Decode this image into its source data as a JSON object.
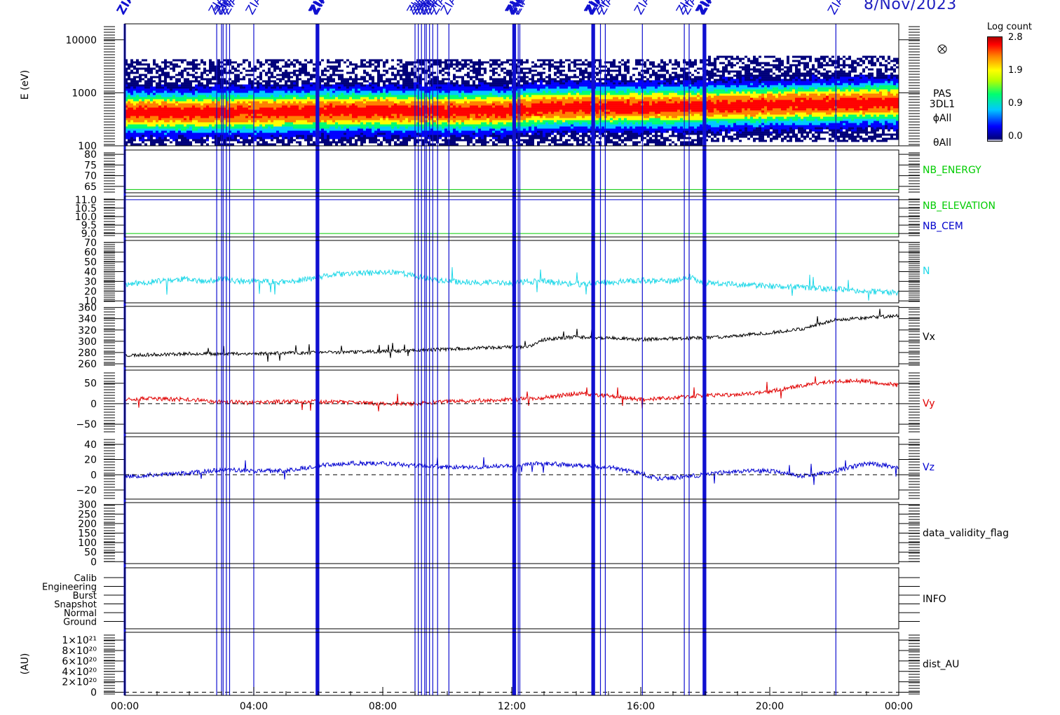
{
  "date_label": "8/Nov/2023",
  "marker_label": "ZIAS",
  "colorbar": {
    "title": "Log count",
    "ticks": [
      "2.8",
      "1.9",
      "0.9",
      "0.0"
    ],
    "colors": [
      "#ffffff",
      "#00007a",
      "#0000ff",
      "#00c8ff",
      "#00ff70",
      "#ffff00",
      "#ff8000",
      "#ff0000",
      "#b00000"
    ]
  },
  "chart_data": {
    "type": "line",
    "x_range_hours": [
      0,
      24
    ],
    "x_tick_labels": [
      "00:00",
      "04:00",
      "08:00",
      "12:00",
      "16:00",
      "20:00",
      "00:00"
    ],
    "event_markers_hours": [
      0.0,
      2.85,
      3.0,
      3.05,
      3.15,
      3.25,
      4.0,
      5.95,
      6.0,
      9.0,
      9.1,
      9.2,
      9.3,
      9.35,
      9.45,
      9.55,
      9.7,
      10.05,
      12.05,
      12.1,
      12.2,
      12.25,
      14.5,
      14.55,
      14.75,
      14.9,
      16.05,
      17.35,
      17.5,
      17.95,
      18.0,
      22.05
    ],
    "panels": [
      {
        "id": "spectrogram",
        "type": "heatmap",
        "ylabel": "E (eV)",
        "y_scale": "log",
        "ylim": [
          100,
          20000
        ],
        "y_tick_labels": [
          "10000",
          "1000",
          "100"
        ],
        "y_ticks": [
          10000,
          1000,
          100
        ],
        "right_labels": [
          "PAS",
          "3DL1",
          "ϕAll",
          "θAll"
        ],
        "peak_energy_ev": {
          "hours": [
            0,
            2,
            4,
            6,
            8,
            10,
            12,
            12.5,
            13,
            14,
            16,
            18,
            20,
            22,
            24
          ],
          "values": [
            450,
            440,
            450,
            470,
            480,
            470,
            480,
            520,
            540,
            560,
            560,
            580,
            620,
            660,
            680
          ]
        },
        "colorbar_range": [
          0.0,
          2.8
        ]
      },
      {
        "id": "nb-energy",
        "ylim": [
          62,
          82
        ],
        "y_tick_labels": [
          "80",
          "75",
          "70",
          "65"
        ],
        "y_ticks": [
          80,
          75,
          70,
          65
        ],
        "series": [
          {
            "name": "NB_ENERGY",
            "color": "#00cc00",
            "constant": 63.5
          }
        ]
      },
      {
        "id": "nb-elevation-cem",
        "ylim": [
          8.8,
          11.2
        ],
        "y_tick_labels": [
          "11.0",
          "10.5",
          "10.0",
          "9.5",
          "9.0"
        ],
        "y_ticks": [
          11.0,
          10.5,
          10.0,
          9.5,
          9.0
        ],
        "series": [
          {
            "name": "NB_ELEVATION",
            "color": "#00cc00",
            "constant": 9.0
          },
          {
            "name": "NB_CEM",
            "color": "#0000cc",
            "constant": 11.0
          }
        ]
      },
      {
        "id": "density",
        "ylim": [
          8,
          72
        ],
        "y_tick_labels": [
          "70",
          "60",
          "50",
          "40",
          "30",
          "20",
          "10"
        ],
        "y_ticks": [
          70,
          60,
          50,
          40,
          30,
          20,
          10
        ],
        "series": [
          {
            "name": "N",
            "color": "#20d8e8",
            "hours": [
              0,
              1,
              2,
              2.5,
              3,
              3.5,
              4,
              5,
              6,
              6.5,
              7,
              8,
              8.5,
              9,
              10,
              11,
              12,
              12.5,
              13,
              14,
              15,
              16,
              17,
              17.5,
              18,
              19,
              20,
              21,
              22,
              23,
              24
            ],
            "values": [
              27,
              30,
              33,
              29,
              33,
              30,
              30,
              29,
              34,
              37,
              38,
              39,
              40,
              35,
              30,
              29,
              28,
              30,
              30,
              27,
              29,
              31,
              30,
              35,
              28,
              27,
              25,
              24,
              22,
              20,
              18
            ],
            "noise": 3,
            "seed": 11
          }
        ]
      },
      {
        "id": "vx",
        "ylim": [
          255,
          362
        ],
        "y_tick_labels": [
          "360",
          "340",
          "320",
          "300",
          "280",
          "260"
        ],
        "y_ticks": [
          360,
          340,
          320,
          300,
          280,
          260
        ],
        "series": [
          {
            "name": "Vx",
            "color": "#000000",
            "hours": [
              0,
              2,
              4,
              6,
              8,
              10,
              12,
              12.5,
              13,
              14,
              15,
              16,
              17,
              18,
              19,
              20,
              21,
              22,
              23,
              24
            ],
            "values": [
              275,
              278,
              278,
              280,
              282,
              286,
              290,
              290,
              303,
              308,
              306,
              303,
              305,
              306,
              310,
              315,
              322,
              338,
              342,
              345
            ],
            "noise": 3,
            "seed": 23
          }
        ]
      },
      {
        "id": "vy",
        "ylim": [
          -72,
          82
        ],
        "y_tick_labels": [
          "50",
          "0",
          "−50"
        ],
        "y_ticks": [
          50,
          0,
          -50
        ],
        "zero_line": true,
        "series": [
          {
            "name": "Vy",
            "color": "#e00000",
            "hours": [
              0,
              1,
              2,
              3,
              4,
              5,
              6,
              7,
              8,
              9,
              10,
              11,
              12,
              13,
              14,
              15,
              16,
              17,
              18,
              19,
              20,
              21,
              22,
              23,
              24
            ],
            "values": [
              12,
              12,
              10,
              5,
              2,
              6,
              5,
              3,
              0,
              0,
              5,
              8,
              10,
              15,
              25,
              20,
              10,
              15,
              20,
              22,
              30,
              45,
              55,
              55,
              45
            ],
            "noise": 5,
            "seed": 37
          }
        ]
      },
      {
        "id": "vz",
        "ylim": [
          -32,
          50
        ],
        "y_tick_labels": [
          "40",
          "20",
          "0",
          "−20"
        ],
        "y_ticks": [
          40,
          20,
          0,
          -20
        ],
        "zero_line": true,
        "series": [
          {
            "name": "Vz",
            "color": "#0000d0",
            "hours": [
              0,
              1,
              2,
              3,
              4,
              5,
              6,
              7,
              8,
              9,
              10,
              11,
              12,
              13,
              14,
              15,
              16,
              16.5,
              17,
              18,
              19,
              20,
              21,
              22,
              23,
              24
            ],
            "values": [
              -2,
              0,
              2,
              7,
              5,
              5,
              12,
              15,
              15,
              12,
              10,
              10,
              12,
              15,
              12,
              10,
              2,
              -5,
              -4,
              0,
              5,
              5,
              -2,
              5,
              15,
              10
            ],
            "noise": 3,
            "seed": 53
          }
        ]
      },
      {
        "id": "data-validity",
        "ylim": [
          -10,
          310
        ],
        "y_tick_labels": [
          "300",
          "250",
          "200",
          "150",
          "100",
          "50",
          "0"
        ],
        "y_ticks": [
          300,
          250,
          200,
          150,
          100,
          50,
          0
        ],
        "series": [
          {
            "name": "data_validity_flag",
            "color": "#000000"
          }
        ]
      },
      {
        "id": "info",
        "y_tick_labels": [
          "Calib",
          "Engineering",
          "Burst",
          "Snapshot",
          "Normal",
          "Ground"
        ],
        "series": [
          {
            "name": "INFO",
            "color": "#000000"
          }
        ]
      },
      {
        "id": "dist-au",
        "ylabel": "(AU)",
        "ylim": [
          -6e+19,
          1.15e+21
        ],
        "y_tick_labels": [
          "1×10²¹",
          "8×10²⁰",
          "6×10²⁰",
          "4×10²⁰",
          "2×10²⁰",
          "0"
        ],
        "y_ticks": [
          1e+21,
          8e+20,
          6e+20,
          4e+20,
          2e+20,
          0
        ],
        "zero_line": true,
        "series": [
          {
            "name": "dist_AU",
            "color": "#000000"
          }
        ]
      }
    ]
  }
}
